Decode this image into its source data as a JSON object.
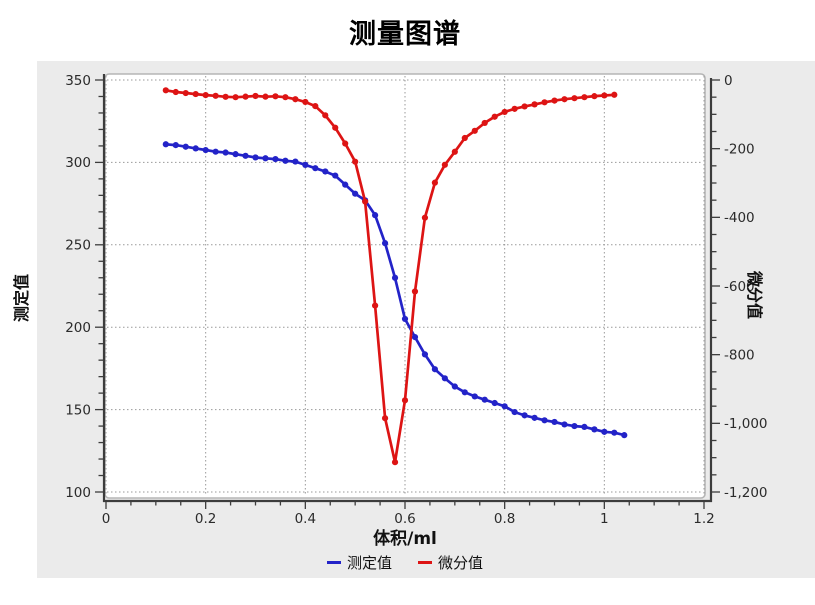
{
  "chart": {
    "title": "测量图谱",
    "x_axis": {
      "label": "体积/ml",
      "tick_labels": [
        "0",
        "0.2",
        "0.4",
        "0.6",
        "0.8",
        "1",
        "1.2"
      ],
      "tick_values": [
        0,
        0.2,
        0.4,
        0.6,
        0.8,
        1.0,
        1.2
      ],
      "min": 0,
      "max": 1.2,
      "minor_step": 0.05
    },
    "left_axis": {
      "label": "测定值",
      "tick_labels": [
        "350",
        "300",
        "250",
        "200",
        "150",
        "100"
      ],
      "tick_values": [
        350,
        300,
        250,
        200,
        150,
        100
      ],
      "min": 100,
      "max": 350,
      "minor_step": 10
    },
    "right_axis": {
      "label": "微分值",
      "tick_labels": [
        "0",
        "-200",
        "-400",
        "-600",
        "-800",
        "-1,000",
        "-1,200"
      ],
      "tick_values": [
        0,
        -200,
        -400,
        -600,
        -800,
        -1000,
        -1200
      ],
      "min": -1200,
      "max": 0,
      "minor_step": 50
    },
    "legend": [
      {
        "label": "测定值",
        "color": "#2323c8"
      },
      {
        "label": "微分值",
        "color": "#dd1414"
      }
    ]
  },
  "chart_data": {
    "type": "line",
    "title": "测量图谱",
    "xlabel": "体积/ml",
    "ylabel_left": "测定值",
    "ylabel_right": "微分值",
    "xlim": [
      0,
      1.2
    ],
    "ylim_left": [
      100,
      350
    ],
    "ylim_right": [
      -1200,
      0
    ],
    "grid": "dotted",
    "legend_position": "bottom-center",
    "series": [
      {
        "name": "测定值",
        "axis": "left",
        "color": "#2323c8",
        "marker": "circle",
        "x": [
          0.12,
          0.14,
          0.16,
          0.18,
          0.2,
          0.22,
          0.24,
          0.26,
          0.28,
          0.3,
          0.32,
          0.34,
          0.36,
          0.38,
          0.4,
          0.42,
          0.44,
          0.46,
          0.48,
          0.5,
          0.52,
          0.54,
          0.56,
          0.58,
          0.6,
          0.62,
          0.64,
          0.66,
          0.68,
          0.7,
          0.72,
          0.74,
          0.76,
          0.78,
          0.8,
          0.82,
          0.84,
          0.86,
          0.88,
          0.9,
          0.92,
          0.94,
          0.96,
          0.98,
          1.0,
          1.02,
          1.04
        ],
        "values": [
          311,
          310.5,
          309.5,
          308.5,
          307.5,
          306.5,
          306,
          305,
          304,
          303,
          302.5,
          302,
          301,
          300.5,
          298.5,
          296.5,
          294.5,
          292,
          286.5,
          281,
          277,
          268,
          251,
          230,
          205,
          194,
          183.5,
          174.5,
          169,
          164,
          160.5,
          158,
          156,
          154,
          152,
          148.5,
          146.5,
          145,
          143.5,
          142.5,
          141,
          140,
          139.5,
          138,
          136.5,
          136,
          134.5
        ]
      },
      {
        "name": "微分值",
        "axis": "right",
        "color": "#dd1414",
        "marker": "circle",
        "x": [
          0.12,
          0.14,
          0.16,
          0.18,
          0.2,
          0.22,
          0.24,
          0.26,
          0.28,
          0.3,
          0.32,
          0.34,
          0.36,
          0.38,
          0.4,
          0.42,
          0.44,
          0.46,
          0.48,
          0.5,
          0.52,
          0.54,
          0.56,
          0.58,
          0.6,
          0.62,
          0.64,
          0.66,
          0.68,
          0.7,
          0.72,
          0.74,
          0.76,
          0.78,
          0.8,
          0.82,
          0.84,
          0.86,
          0.88,
          0.9,
          0.92,
          0.94,
          0.96,
          0.98,
          1.0,
          1.02
        ],
        "values": [
          -30,
          -35,
          -38,
          -41,
          -44,
          -46,
          -49,
          -50,
          -48.5,
          -46.5,
          -48.5,
          -47.5,
          -50,
          -56,
          -64,
          -76,
          -103,
          -139,
          -185,
          -238,
          -354,
          -657,
          -985,
          -1113,
          -933,
          -616,
          -401,
          -299,
          -247,
          -209,
          -169,
          -148,
          -125,
          -107,
          -93,
          -84,
          -77,
          -71,
          -65,
          -60,
          -56,
          -53,
          -50,
          -47,
          -45,
          -43
        ]
      }
    ]
  }
}
